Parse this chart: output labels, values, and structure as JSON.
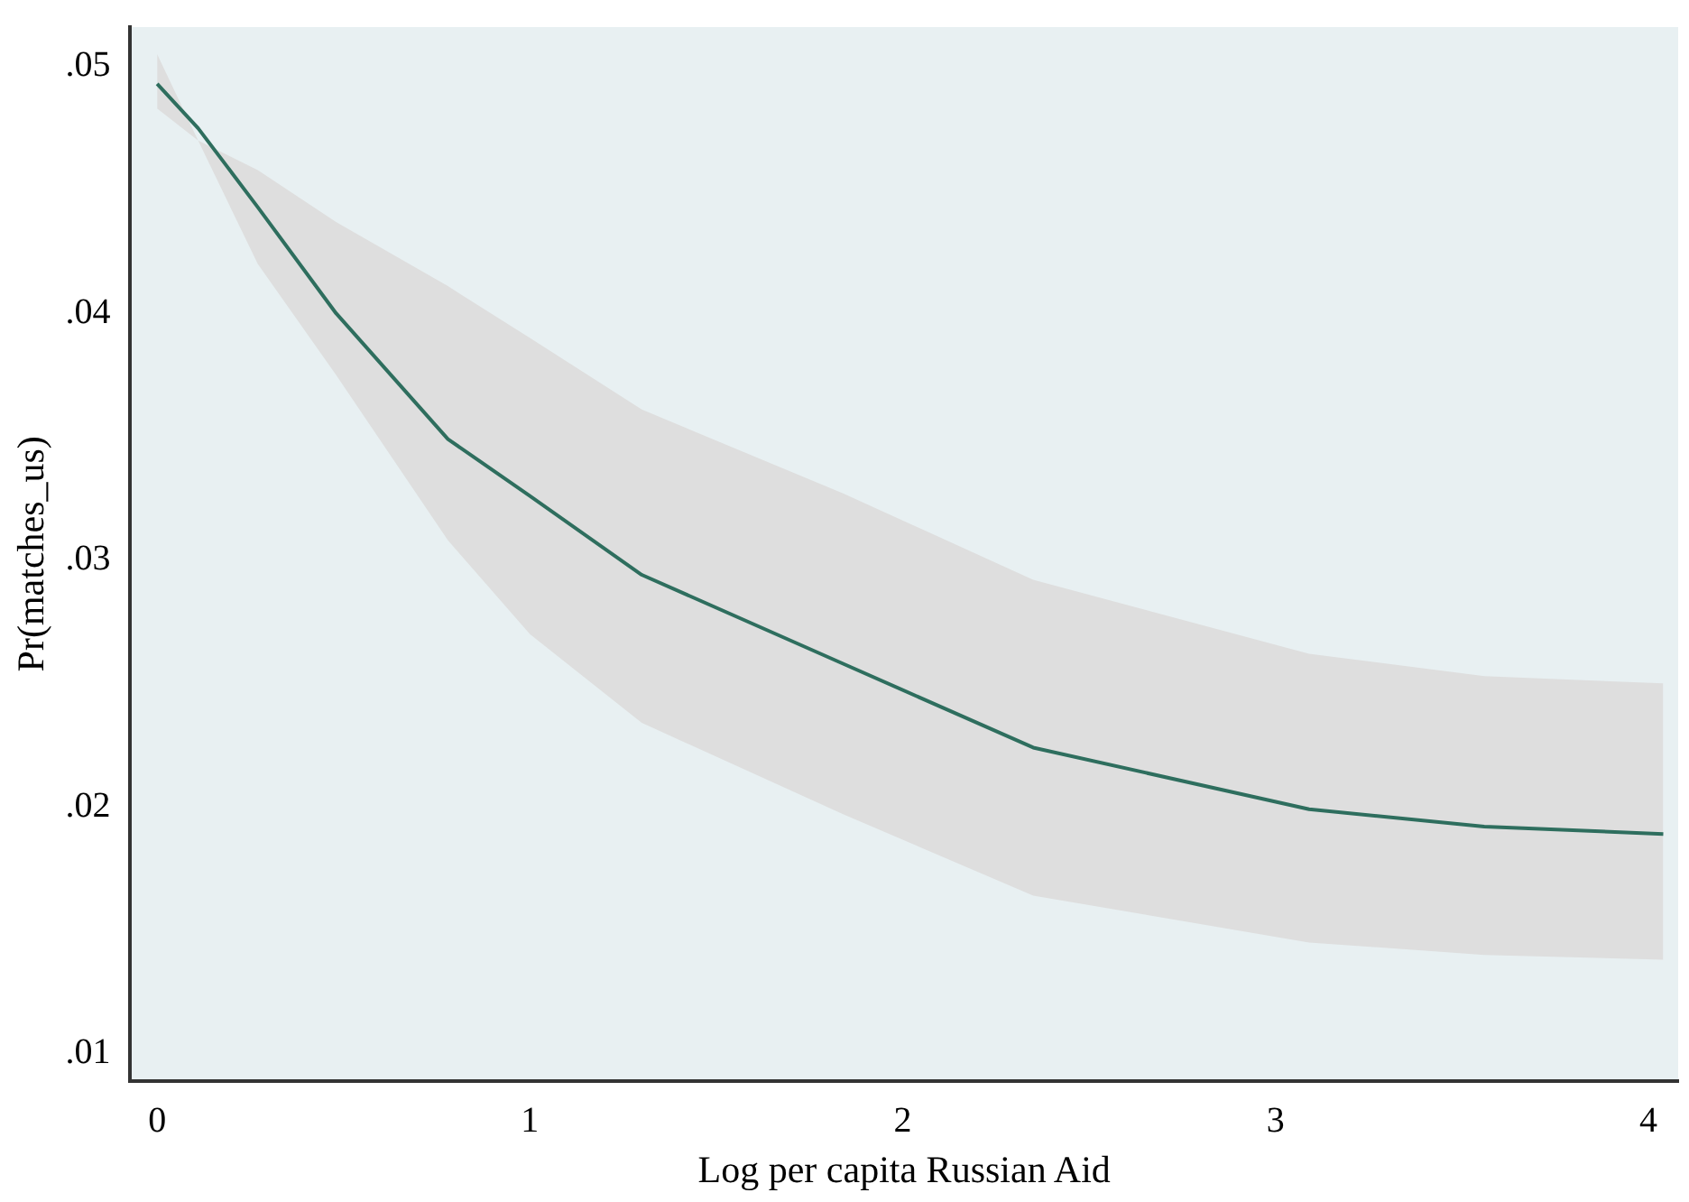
{
  "chart_data": {
    "type": "line",
    "xlabel": "Log per capita Russian Aid",
    "ylabel": "Pr(matches_us)",
    "xlim": [
      -0.072,
      4.08
    ],
    "xticks": [
      0,
      1,
      2,
      3,
      4
    ],
    "ylim": [
      0.0089,
      0.0516
    ],
    "yticks": [
      {
        "value": 0.01,
        "label": ".01"
      },
      {
        "value": 0.02,
        "label": ".02"
      },
      {
        "value": 0.03,
        "label": ".03"
      },
      {
        "value": 0.04,
        "label": ".04"
      },
      {
        "value": 0.05,
        "label": ".05"
      }
    ],
    "grid": false,
    "legend": false,
    "marker": "none",
    "line_style": "solid",
    "series": [
      {
        "color": "#2e6e5e",
        "x": [
          0,
          0.11,
          0.27,
          0.48,
          0.78,
          1.0,
          1.3,
          1.84,
          2.35,
          3.09,
          3.56,
          4.04
        ],
        "values": [
          0.0493,
          0.0475,
          0.0443,
          0.04,
          0.0349,
          0.0326,
          0.0294,
          0.0258,
          0.0224,
          0.0199,
          0.0192,
          0.0189
        ],
        "lower": [
          0.0483,
          0.047,
          0.042,
          0.0375,
          0.0308,
          0.027,
          0.0234,
          0.0197,
          0.0164,
          0.0145,
          0.014,
          0.0138
        ],
        "upper": [
          0.0505,
          0.047,
          0.0458,
          0.0437,
          0.0411,
          0.039,
          0.0361,
          0.0327,
          0.0292,
          0.0262,
          0.0253,
          0.025
        ]
      }
    ]
  }
}
